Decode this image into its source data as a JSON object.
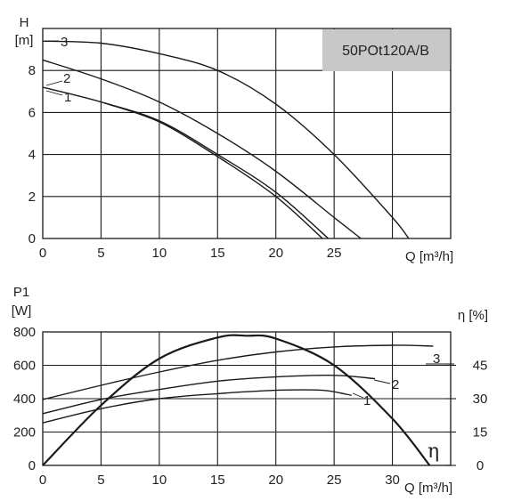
{
  "model_box": {
    "text": "50POt120A/B",
    "fill": "#c8c8c8"
  },
  "chart_data": [
    {
      "type": "line",
      "id": "head",
      "ylabel_lines": [
        "H",
        "[m]"
      ],
      "xlabel": "Q [m³/h]",
      "xlim": [
        0,
        35
      ],
      "ylim": [
        0,
        10
      ],
      "x_ticks": [
        0,
        5,
        10,
        15,
        20,
        25
      ],
      "y_ticks": [
        0,
        2,
        4,
        6,
        8
      ],
      "grid": true,
      "series": [
        {
          "name": "3",
          "x": [
            0,
            5,
            10,
            15,
            20,
            25,
            30,
            31.4
          ],
          "y": [
            9.4,
            9.3,
            8.8,
            8.0,
            6.4,
            4.0,
            1.0,
            0.0
          ]
        },
        {
          "name": "2",
          "x": [
            0,
            5,
            10,
            15,
            20,
            25,
            27.3
          ],
          "y": [
            8.5,
            7.6,
            6.5,
            5.0,
            3.2,
            1.0,
            0.0
          ]
        },
        {
          "name": "1",
          "x": [
            0,
            5,
            10,
            15,
            20,
            24.5
          ],
          "y": [
            7.2,
            6.5,
            5.6,
            4.0,
            2.2,
            0.0
          ]
        },
        {
          "name": "",
          "x": [
            5.3,
            10,
            15,
            20,
            24.0
          ],
          "y": [
            6.45,
            5.55,
            3.9,
            2.0,
            0.0
          ]
        }
      ]
    },
    {
      "type": "line",
      "id": "power",
      "ylabel_lines": [
        "P1",
        "[W]"
      ],
      "y2label": "η [%]",
      "xlabel": "Q [m³/h]",
      "xlim": [
        0,
        35
      ],
      "ylim": [
        0,
        800
      ],
      "y2lim": [
        0,
        60
      ],
      "x_ticks": [
        0,
        5,
        10,
        15,
        20,
        25,
        30
      ],
      "y_ticks": [
        0,
        200,
        400,
        600,
        800
      ],
      "y2_ticks": [
        0,
        15,
        30,
        45
      ],
      "grid": true,
      "series": [
        {
          "name": "3",
          "axis": "P1",
          "x": [
            0,
            5,
            10,
            15,
            20,
            25,
            30,
            33.5
          ],
          "y": [
            395,
            480,
            560,
            630,
            680,
            710,
            720,
            715
          ]
        },
        {
          "name": "2",
          "axis": "P1",
          "x": [
            0,
            5,
            10,
            15,
            20,
            25,
            28.5
          ],
          "y": [
            310,
            395,
            455,
            505,
            530,
            540,
            520
          ]
        },
        {
          "name": "1",
          "axis": "P1",
          "x": [
            0,
            5,
            10,
            15,
            20,
            24,
            26.5
          ],
          "y": [
            255,
            340,
            400,
            430,
            450,
            450,
            420
          ]
        },
        {
          "name": "η",
          "axis": "η",
          "x": [
            0,
            5,
            10,
            15,
            17.5,
            20,
            25,
            30,
            33.2
          ],
          "y": [
            0,
            27,
            48,
            57.5,
            58.3,
            57,
            45,
            21,
            0
          ]
        }
      ]
    }
  ]
}
